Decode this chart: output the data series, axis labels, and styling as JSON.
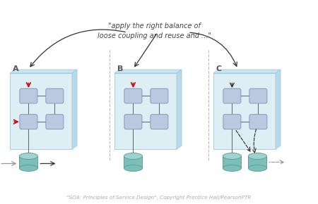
{
  "title_text": "\"apply the right balance of\nloose coupling and reuse and ...\"",
  "footer_text": "\"SOA: Principles of Service Design\", Copyright Prentice Hall/PearsonPTR",
  "sections": [
    "A",
    "B",
    "C"
  ],
  "box_color": "#bcc8e0",
  "box_edge_color": "#8899bb",
  "cylinder_top_color": "#9fd4cc",
  "cylinder_body_color": "#7bbfb8",
  "panel_fill_front": "#ddeef5",
  "panel_fill_top": "#cce4f0",
  "panel_fill_right": "#bbd8ea",
  "panel_edge": "#99ccdd",
  "bg_color": "#ffffff",
  "red_arrow_color": "#cc1111",
  "dark_arrow_color": "#333333",
  "gray_arrow_color": "#999999",
  "divider_color": "#bbbbbb",
  "label_color": "#555555",
  "title_color": "#444444",
  "footer_color": "#aaaaaa"
}
